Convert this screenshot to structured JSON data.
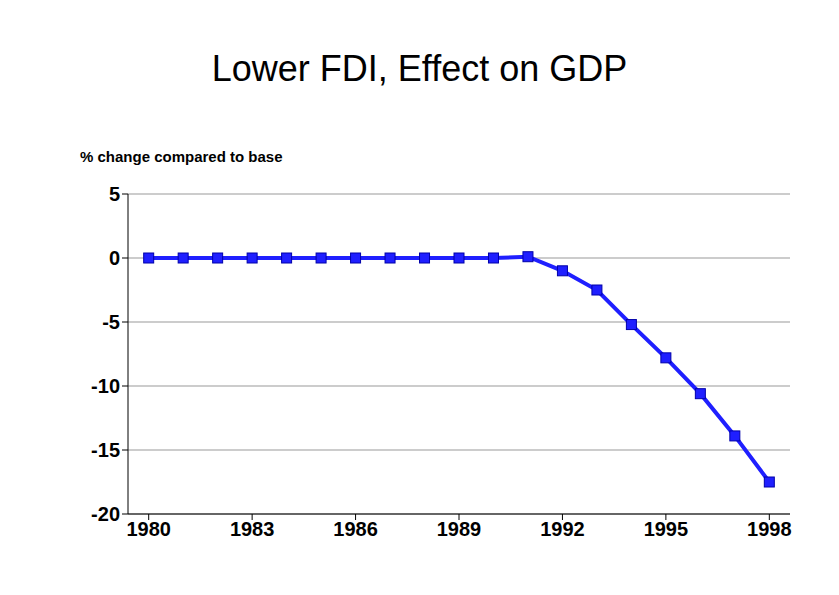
{
  "chart_data": {
    "type": "line",
    "title": "Lower FDI, Effect on GDP",
    "y_label": "% change compared to base",
    "x": [
      1980,
      1981,
      1982,
      1983,
      1984,
      1985,
      1986,
      1987,
      1988,
      1989,
      1990,
      1991,
      1992,
      1993,
      1994,
      1995,
      1996,
      1997,
      1998
    ],
    "values": [
      0,
      0,
      0,
      0,
      0,
      0,
      0,
      0,
      0,
      0,
      0,
      0.1,
      -1.0,
      -2.5,
      -5.2,
      -7.8,
      -10.6,
      -13.9,
      -17.5
    ],
    "color": "#1f1fff",
    "marker": "square",
    "xlim": [
      1979.4,
      1998.6
    ],
    "xticks": [
      1980,
      1983,
      1986,
      1989,
      1992,
      1995,
      1998
    ],
    "ylim": [
      -20,
      5
    ],
    "yticks": [
      -20,
      -15,
      -10,
      -5,
      0,
      5
    ],
    "grid": true
  }
}
